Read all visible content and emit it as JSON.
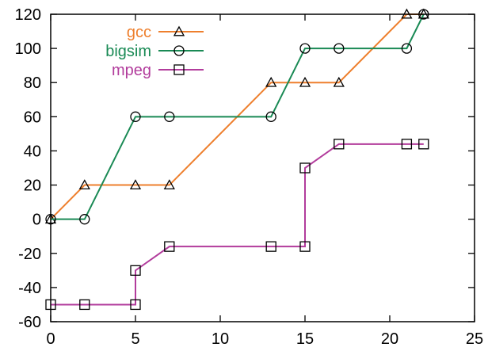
{
  "chart_data": {
    "type": "line",
    "title": "",
    "xlabel": "",
    "ylabel": "",
    "xlim": [
      0,
      25
    ],
    "ylim": [
      -60,
      120
    ],
    "xticks": [
      0,
      5,
      10,
      15,
      20,
      25
    ],
    "yticks": [
      -60,
      -40,
      -20,
      0,
      20,
      40,
      60,
      80,
      100,
      120
    ],
    "grid": false,
    "legend_position": "top-left",
    "series": [
      {
        "name": "gcc",
        "color": "#ee7f2d",
        "marker": "triangle",
        "x": [
          0,
          2,
          5,
          7,
          13,
          15,
          17,
          21,
          22
        ],
        "y": [
          0,
          20,
          20,
          20,
          80,
          80,
          80,
          120,
          120
        ]
      },
      {
        "name": "bigsim",
        "color": "#1a8a55",
        "marker": "circle",
        "x": [
          0,
          2,
          5,
          7,
          13,
          15,
          17,
          21,
          22
        ],
        "y": [
          0,
          0,
          60,
          60,
          60,
          100,
          100,
          100,
          120
        ]
      },
      {
        "name": "mpeg",
        "color": "#b23c9c",
        "marker": "square",
        "x": [
          0,
          2,
          5,
          5,
          7,
          13,
          15,
          15,
          17,
          21,
          22
        ],
        "y": [
          -50,
          -50,
          -50,
          -30,
          -16,
          -16,
          -16,
          30,
          44,
          44,
          44
        ]
      }
    ]
  }
}
